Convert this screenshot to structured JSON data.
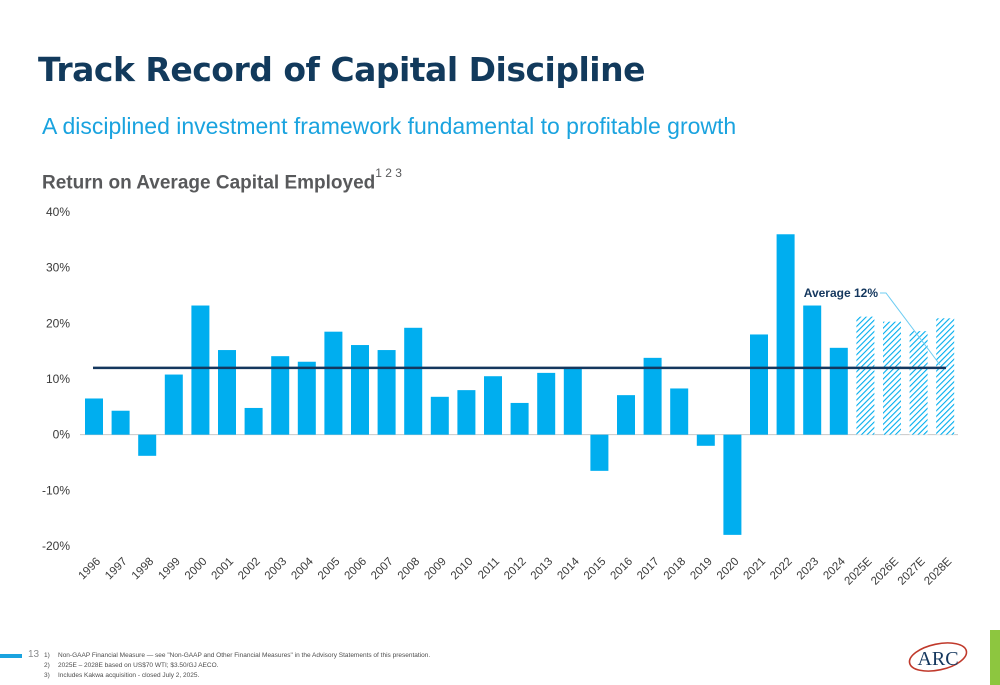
{
  "page": {
    "title": "Track Record of Capital Discipline",
    "subtitle": "A disciplined investment framework fundamental to profitable growth",
    "page_number": "13",
    "logo_text": "ARC"
  },
  "footnotes": [
    {
      "num": "1)",
      "text": "Non-GAAP Financial Measure — see \"Non-GAAP and Other Financial Measures\" in the Advisory Statements of this presentation."
    },
    {
      "num": "2)",
      "text": "2025E – 2028E based on US$70 WTI; $3.50/GJ AECO."
    },
    {
      "num": "3)",
      "text": "Includes Kakwa acquisition - closed July 2, 2025."
    }
  ],
  "colors": {
    "bar": "#00aeef",
    "average_line": "#14375e",
    "title": "#123a5c",
    "subtitle": "#1aa3df",
    "hatch": "#00aeef"
  },
  "chart_data": {
    "type": "bar",
    "title": "Return on Average Capital Employed",
    "title_superscript": "1 2 3",
    "categories": [
      "1996",
      "1997",
      "1998",
      "1999",
      "2000",
      "2001",
      "2002",
      "2003",
      "2004",
      "2005",
      "2006",
      "2007",
      "2008",
      "2009",
      "2010",
      "2011",
      "2012",
      "2013",
      "2014",
      "2015",
      "2016",
      "2017",
      "2018",
      "2019",
      "2020",
      "2021",
      "2022",
      "2023",
      "2024",
      "2025E",
      "2026E",
      "2027E",
      "2028E"
    ],
    "values": [
      6.5,
      4.3,
      -3.8,
      10.8,
      23.2,
      15.2,
      4.8,
      14.1,
      13.1,
      18.5,
      16.1,
      15.2,
      19.2,
      6.8,
      8.0,
      10.5,
      5.7,
      11.1,
      12.0,
      -6.5,
      7.1,
      13.8,
      8.3,
      -2.0,
      -18.0,
      18.0,
      36.0,
      23.2,
      15.6,
      21.2,
      20.3,
      18.6,
      20.9
    ],
    "projected": [
      "2025E",
      "2026E",
      "2027E",
      "2028E"
    ],
    "average": 12,
    "average_label": "Average 12%",
    "ylim": [
      -20,
      40
    ],
    "yticks": [
      40,
      30,
      20,
      10,
      0,
      -10,
      -20
    ],
    "ytick_labels": [
      "40%",
      "30%",
      "20%",
      "10%",
      "0%",
      "-10%",
      "-20%"
    ],
    "xlabel": "",
    "ylabel": "",
    "grid": false
  }
}
